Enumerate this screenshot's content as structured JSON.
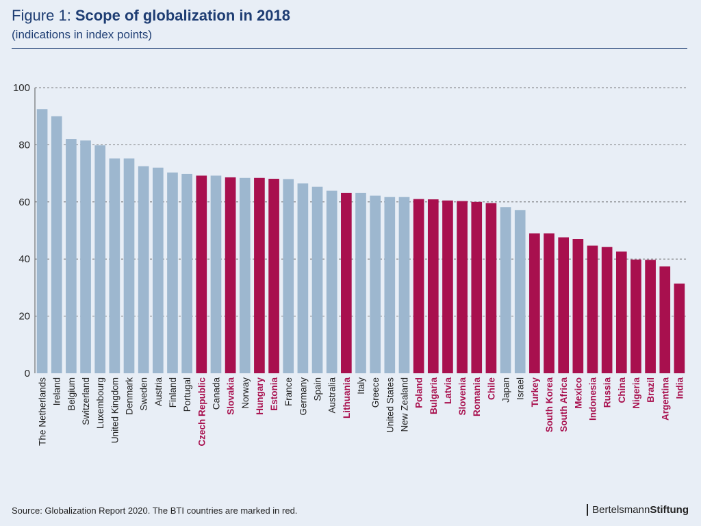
{
  "header": {
    "figure_label": "Figure 1:",
    "title": "Scope of globalization in 2018",
    "subtitle": "(indications in index points)"
  },
  "footer": {
    "source": "Source: Globalization Report 2020. The BTI countries are marked in red.",
    "brand_regular": "Bertelsmann",
    "brand_bold": "Stiftung"
  },
  "colors": {
    "background": "#e8eef6",
    "bti": "#a8104e",
    "non_bti": "#9db7cf",
    "grid": "#555555",
    "title": "#1e3d73"
  },
  "chart_data": {
    "type": "bar",
    "title": "Scope of globalization in 2018",
    "subtitle": "(indications in index points)",
    "xlabel": "",
    "ylabel": "",
    "ylim": [
      0,
      100
    ],
    "yticks": [
      0,
      20,
      40,
      60,
      80,
      100
    ],
    "grid": true,
    "legend_note": "The BTI countries are marked in red.",
    "categories": [
      "The Netherlands",
      "Ireland",
      "Belgium",
      "Switzerland",
      "Luxembourg",
      "United Kingdom",
      "Denmark",
      "Sweden",
      "Austria",
      "Finland",
      "Portugal",
      "Czech Republic",
      "Canada",
      "Slovakia",
      "Norway",
      "Hungary",
      "Estonia",
      "France",
      "Germany",
      "Spain",
      "Australia",
      "Lithuania",
      "Italy",
      "Greece",
      "United States",
      "New Zealand",
      "Poland",
      "Bulgaria",
      "Latvia",
      "Slovenia",
      "Romania",
      "Chile",
      "Japan",
      "Israel",
      "Turkey",
      "South Korea",
      "South Africa",
      "Mexico",
      "Indonesia",
      "Russia",
      "China",
      "Nigeria",
      "Brazil",
      "Argentina",
      "India"
    ],
    "values": [
      92.5,
      90,
      82,
      81.5,
      79.8,
      75.2,
      75.2,
      72.5,
      72,
      70.3,
      69.8,
      69.2,
      69.2,
      68.6,
      68.4,
      68.4,
      68.1,
      68,
      66.5,
      65.3,
      63.9,
      63.1,
      63.1,
      62.2,
      61.7,
      61.7,
      61,
      60.9,
      60.5,
      60.3,
      60,
      59.6,
      58.2,
      57.1,
      49,
      49,
      47.6,
      47,
      44.7,
      44.2,
      42.6,
      39.8,
      39.7,
      37.4,
      31.4
    ],
    "bti": [
      false,
      false,
      false,
      false,
      false,
      false,
      false,
      false,
      false,
      false,
      false,
      true,
      false,
      true,
      false,
      true,
      true,
      false,
      false,
      false,
      false,
      true,
      false,
      false,
      false,
      false,
      true,
      true,
      true,
      true,
      true,
      true,
      false,
      false,
      true,
      true,
      true,
      true,
      true,
      true,
      true,
      true,
      true,
      true,
      true
    ]
  }
}
